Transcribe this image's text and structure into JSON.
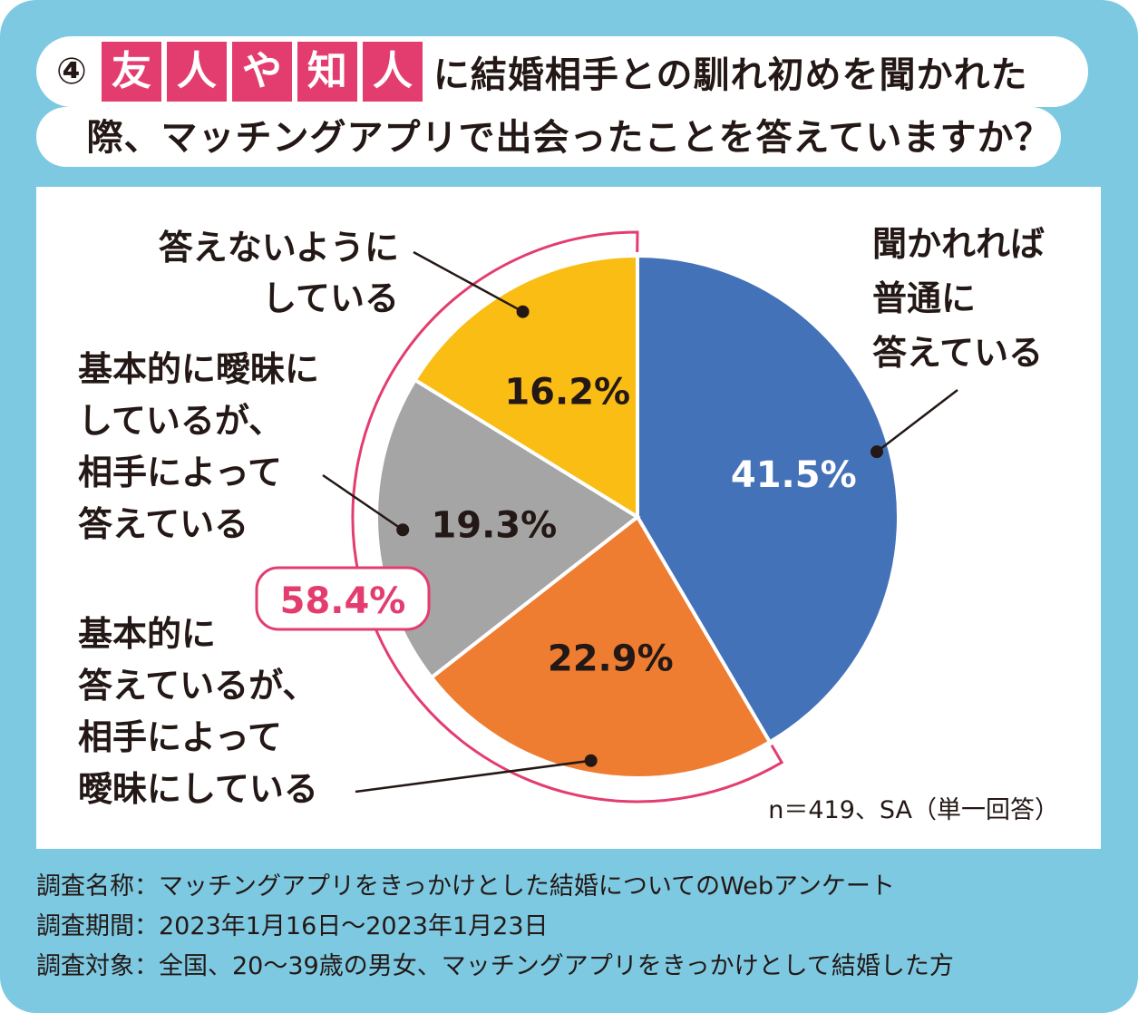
{
  "header": {
    "number": "④",
    "highlight_chars": [
      "友",
      "人",
      "や",
      "知",
      "人"
    ],
    "title_rest": "に結婚相手との馴れ初めを聞かれた",
    "title_line2": "際、マッチングアプリで出会ったことを答えていますか？"
  },
  "chart_data": {
    "type": "pie",
    "title": "友人や知人に結婚相手との馴れ初めを聞かれた際、マッチングアプリで出会ったことを答えていますか？",
    "slices": [
      {
        "label": "聞かれれば普通に答えている",
        "value": 41.5,
        "value_label": "41.5%",
        "color": "#4472b8"
      },
      {
        "label": "基本的に答えているが、相手によって曖昧にしている",
        "value": 22.9,
        "value_label": "22.9%",
        "color": "#ee7d31"
      },
      {
        "label": "基本的に曖昧にしているが、相手によって答えている",
        "value": 19.3,
        "value_label": "19.3%",
        "color": "#a5a5a5"
      },
      {
        "label": "答えないようにしている",
        "value": 16.2,
        "value_label": "16.2%",
        "color": "#f9bd14"
      }
    ],
    "callout_lines": {
      "s0": [
        "聞かれれば",
        "普通に",
        "答えている"
      ],
      "s1": [
        "基本的に",
        "答えているが、",
        "相手によって",
        "曖昧にしている"
      ],
      "s2": [
        "基本的に曖昧に",
        "しているが、",
        "相手によって",
        "答えている"
      ],
      "s3": [
        "答えないように",
        "している"
      ]
    },
    "bracket_total": "58.4%",
    "sample_note": "n＝419、SA（単一回答）"
  },
  "colors": {
    "frame": "#7dc9e2",
    "accent": "#e33d6f"
  },
  "footer": {
    "name": "調査名称：マッチングアプリをきっかけとした結婚についてのWebアンケート",
    "period": "調査期間：2023年1月16日～2023年1月23日",
    "target": "調査対象：全国、20～39歳の男女、マッチングアプリをきっかけとして結婚した方"
  }
}
